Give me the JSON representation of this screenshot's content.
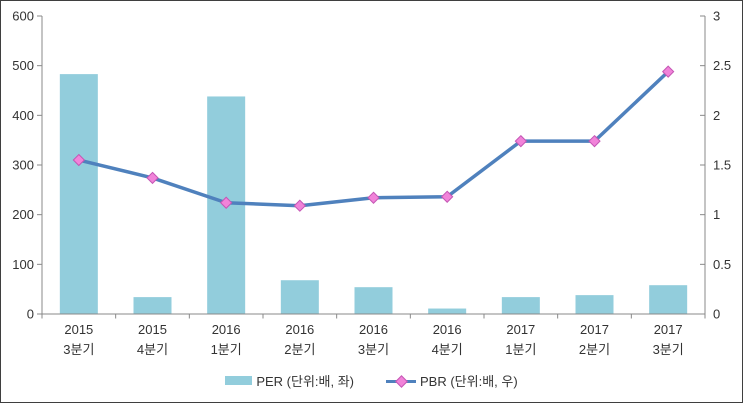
{
  "chart_data": {
    "type": "bar+line combo",
    "title": "",
    "categories": [
      [
        "2015",
        "3분기"
      ],
      [
        "2015",
        "4분기"
      ],
      [
        "2016",
        "1분기"
      ],
      [
        "2016",
        "2분기"
      ],
      [
        "2016",
        "3분기"
      ],
      [
        "2016",
        "4분기"
      ],
      [
        "2017",
        "1분기"
      ],
      [
        "2017",
        "2분기"
      ],
      [
        "2017",
        "3분기"
      ]
    ],
    "series": [
      {
        "name": "PER (단위:배, 좌)",
        "type": "bar",
        "axis": "left",
        "color": "#92CDDC",
        "values": [
          483,
          34,
          438,
          68,
          54,
          11,
          34,
          38,
          58
        ]
      },
      {
        "name": "PBR (단위:배, 우)",
        "type": "line",
        "axis": "right",
        "color": "#4F81BD",
        "marker": "diamond",
        "marker_fill": "#F183D9",
        "marker_stroke": "#C456B4",
        "values": [
          1.55,
          1.37,
          1.12,
          1.09,
          1.17,
          1.18,
          1.74,
          1.74,
          2.44
        ]
      }
    ],
    "left_axis": {
      "min": 0,
      "max": 600,
      "step": 100,
      "ticks": [
        "0",
        "100",
        "200",
        "300",
        "400",
        "500",
        "600"
      ]
    },
    "right_axis": {
      "min": 0,
      "max": 3,
      "step": 0.5,
      "ticks": [
        "0",
        "0.5",
        "1",
        "1.5",
        "2",
        "2.5",
        "3"
      ]
    },
    "axis_color": "#898989",
    "label_color": "#333333",
    "grid": false,
    "legend_position": "bottom"
  }
}
